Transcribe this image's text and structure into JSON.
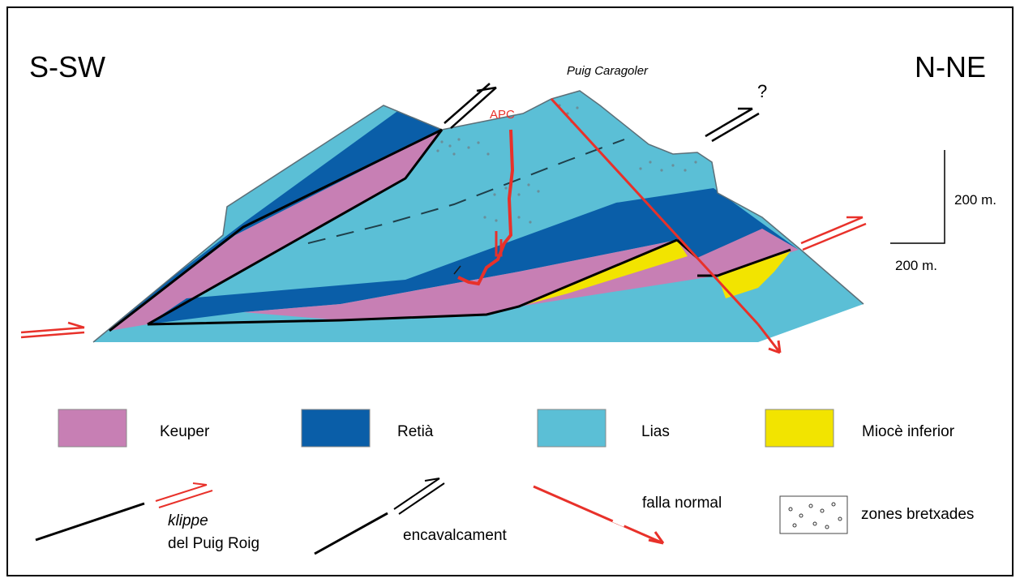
{
  "orientation": {
    "left": "S-SW",
    "right": "N-NE"
  },
  "labels": {
    "peak": "Puig Caragoler",
    "apc": "APC",
    "question": "?"
  },
  "scale": {
    "vertical": "200 m.",
    "horizontal": "200 m."
  },
  "legend": {
    "units": [
      {
        "id": "keuper",
        "label": "Keuper",
        "color": "#c77fb4"
      },
      {
        "id": "retia",
        "label": "Retià",
        "color": "#0a5ea8"
      },
      {
        "id": "lias",
        "label": "Lias",
        "color": "#5bbfd6"
      },
      {
        "id": "miocene",
        "label": "Miocè inferior",
        "color": "#f2e400"
      }
    ],
    "symbols": {
      "klippe_italic": "klippe",
      "klippe_rest": "del Puig Roig",
      "thrust": "encavalcament",
      "normal_fault": "falla normal",
      "breccia": "zones bretxades"
    }
  },
  "colors": {
    "fault_red": "#e8312a",
    "outline": "#000000",
    "frame": "#000000"
  }
}
